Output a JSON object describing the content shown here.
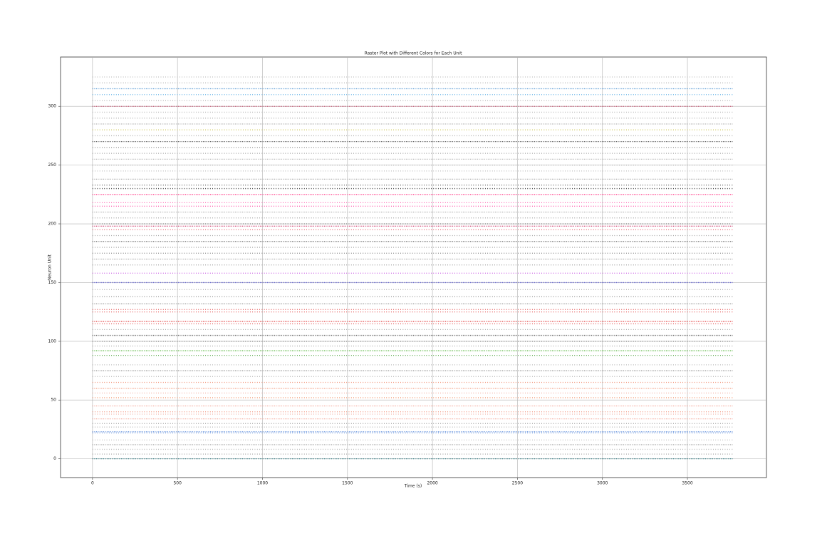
{
  "chart_data": {
    "type": "raster",
    "title": "Raster Plot with Different Colors for Each Unit",
    "x_label": "Time (s)",
    "y_label": "Neuron Unit",
    "x": [
      0,
      3770
    ],
    "units": [
      0,
      4,
      8,
      12,
      16,
      22,
      23,
      27,
      30,
      34,
      38,
      40,
      45,
      52,
      56,
      60,
      65,
      70,
      75,
      80,
      88,
      92,
      96,
      100,
      105,
      110,
      115,
      117,
      125,
      127,
      132,
      138,
      144,
      150,
      158,
      165,
      170,
      175,
      180,
      185,
      190,
      195,
      198,
      200,
      205,
      210,
      215,
      218,
      225,
      230,
      233,
      238,
      245,
      250,
      255,
      260,
      265,
      270,
      275,
      280,
      285,
      290,
      295,
      300,
      305,
      310,
      315,
      320,
      325
    ],
    "colors": [
      "#1f6f78",
      "#9a9a9a",
      "#b0b0b0",
      "#a0a0a0",
      "#b8b8b8",
      "#4a7fd6",
      "#4a7fd6",
      "#a8a8a8",
      "#8a8a8a",
      "#f2a090",
      "#f2a090",
      "#f08a70",
      "#f2a090",
      "#f08050",
      "#f2a090",
      "#f09070",
      "#f08060",
      "#a0a0a0",
      "#8a8a8a",
      "#b0b0b0",
      "#3c9a2a",
      "#4cb030",
      "#a0a0a0",
      "#707070",
      "#606060",
      "#909090",
      "#e03030",
      "#e03030",
      "#e03030",
      "#e04040",
      "#909090",
      "#808080",
      "#a0a0a0",
      "#5050d0",
      "#c040e0",
      "#909090",
      "#a0a0a0",
      "#707070",
      "#808080",
      "#606060",
      "#909090",
      "#e04050",
      "#d04070",
      "#606060",
      "#909090",
      "#b0b0b0",
      "#ff40a0",
      "#ff40a0",
      "#ff3080",
      "#202020",
      "#303030",
      "#a0a0a0",
      "#b0b0b0",
      "#a0a0a0",
      "#b0b0b0",
      "#909090",
      "#707070",
      "#505050",
      "#a0a0a0",
      "#c8c040",
      "#b0b0b0",
      "#a0a0a0",
      "#b0b0b0",
      "#c04060",
      "#a0a0a0",
      "#40a0e0",
      "#4a90d0",
      "#a0a0a0",
      "#b0b0b0"
    ],
    "xlim": [
      -188,
      3965
    ],
    "ylim": [
      -16,
      342
    ],
    "xticks": [
      0,
      500,
      1000,
      1500,
      2000,
      2500,
      3000,
      3500
    ],
    "yticks": [
      0,
      50,
      100,
      150,
      200,
      250,
      300
    ],
    "grid": true
  }
}
